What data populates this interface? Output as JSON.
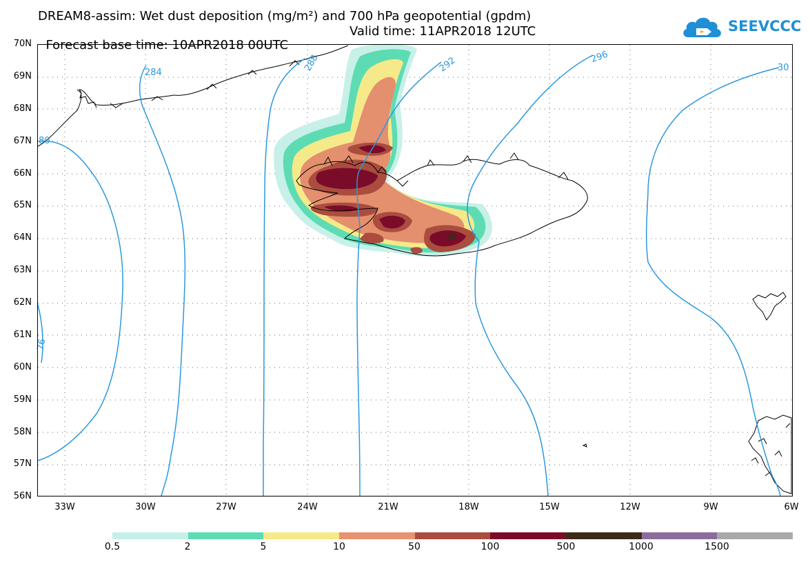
{
  "header": {
    "title_line1": "DREAM8-assim: Wet dust deposition (mg/m²) and 700 hPa geopotential (gpdm)",
    "base_time": "Forecast base time: 10APR2018 00UTC",
    "valid_time": "Valid time: 11APR2018 12UTC"
  },
  "logo": {
    "brand": "SEEVCCC",
    "icon": "cloud-icon",
    "color": "#1f8fd6"
  },
  "map": {
    "region": {
      "lon_min": -34.0,
      "lon_max": -6.0,
      "lat_min": 56.0,
      "lat_max": 70.0
    },
    "lat_ticks": [
      "70N",
      "69N",
      "68N",
      "67N",
      "66N",
      "65N",
      "64N",
      "63N",
      "62N",
      "61N",
      "60N",
      "59N",
      "58N",
      "57N",
      "56N"
    ],
    "lon_ticks": [
      "33W",
      "30W",
      "27W",
      "24W",
      "21W",
      "18W",
      "15W",
      "12W",
      "9W",
      "6W"
    ],
    "gridlines": "dotted",
    "contour_color": "#2a97dd",
    "contour_labels": [
      "284",
      "288",
      "292",
      "296",
      "30",
      "76",
      "80"
    ],
    "deposition_colors": {
      "very_light": "#c7f0e8",
      "light": "#5ddcb4",
      "yellow": "#f6e98a",
      "orange": "#e48f6d",
      "brown": "#aa4d3e",
      "dark_red": "#7a0c2a",
      "black_brown": "#3d2a18"
    }
  },
  "colorbar": {
    "labels": [
      "0.5",
      "2",
      "5",
      "10",
      "50",
      "100",
      "500",
      "1000",
      "1500"
    ],
    "colors": [
      "#c4f0ea",
      "#5ddbb2",
      "#f6e98a",
      "#e89270",
      "#aa4d3e",
      "#7a0c2a",
      "#3d2a18",
      "#8b6c9c",
      "#a9a9a9"
    ]
  }
}
